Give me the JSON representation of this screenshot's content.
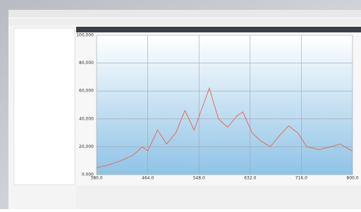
{
  "chart_data": {
    "type": "line",
    "x": [
      380,
      400,
      420,
      440,
      455,
      464,
      480,
      495,
      510,
      525,
      540,
      555,
      565,
      580,
      595,
      610,
      620,
      635,
      650,
      665,
      680,
      695,
      710,
      725,
      745,
      765,
      780,
      795,
      800
    ],
    "series": [
      {
        "color": "#e0705a",
        "values": [
          5000,
          7000,
          10000,
          14000,
          20000,
          17000,
          32000,
          22000,
          30000,
          46000,
          32000,
          50000,
          62000,
          40000,
          34000,
          42000,
          45000,
          30000,
          24000,
          20000,
          28000,
          35000,
          30000,
          20000,
          18000,
          20000,
          22000,
          18000,
          17000
        ]
      }
    ],
    "xlim": [
      380,
      800
    ],
    "xticks": [
      {
        "value": 380,
        "label": "380.0"
      },
      {
        "value": 464,
        "label": "464.0"
      },
      {
        "value": 548,
        "label": "548.0"
      },
      {
        "value": 632,
        "label": "632.0"
      },
      {
        "value": 716,
        "label": "716.0"
      },
      {
        "value": 800,
        "label": "800.0"
      }
    ],
    "ylim": [
      0,
      100000
    ],
    "yticks": [
      {
        "value": 0,
        "label": "0.000"
      },
      {
        "value": 20000,
        "label": "20,000"
      },
      {
        "value": 40000,
        "label": "40,000"
      },
      {
        "value": 60000,
        "label": "60,000"
      },
      {
        "value": 80000,
        "label": "80,000"
      },
      {
        "value": 100000,
        "label": "100,000"
      }
    ],
    "grid": true
  }
}
